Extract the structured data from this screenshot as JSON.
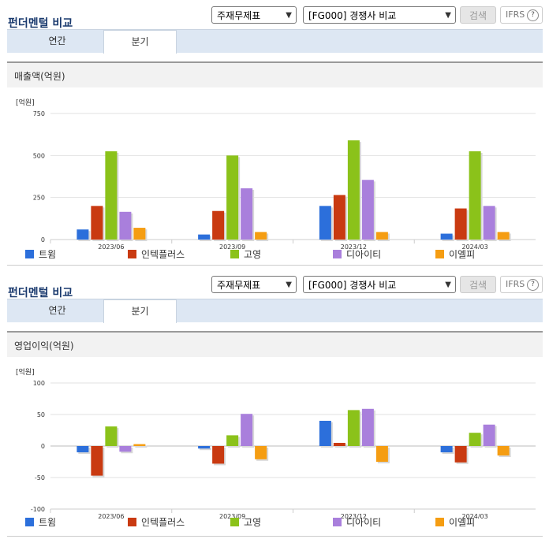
{
  "panels": [
    {
      "title": "펀더멘털 비교",
      "select1": "주재무제표",
      "select2": "[FG000] 경쟁사 비교",
      "search_label": "검색",
      "ifrs_label": "IFRS",
      "help_label": "?",
      "tabs": [
        "연간",
        "분기"
      ],
      "section_label": "매출액(억원)"
    },
    {
      "title": "펀더멘털 비교",
      "select1": "주재무제표",
      "select2": "[FG000] 경쟁사 비교",
      "search_label": "검색",
      "ifrs_label": "IFRS",
      "help_label": "?",
      "tabs": [
        "연간",
        "분기"
      ],
      "section_label": "영업이익(억원)"
    }
  ],
  "legend": [
    "트윔",
    "인텍플러스",
    "고영",
    "디아이티",
    "이엘피"
  ],
  "colors": [
    "#2c6fdb",
    "#c93a11",
    "#8bc21a",
    "#a97fdc",
    "#f59d12"
  ],
  "chart_data": [
    {
      "type": "bar",
      "unit_label": "[억원]",
      "categories": [
        "2023/06",
        "2023/09",
        "2023/12",
        "2024/03"
      ],
      "ylim": [
        0,
        750
      ],
      "yticks": [
        "750",
        "500",
        "250",
        "0"
      ],
      "series": [
        {
          "name": "트윔",
          "values": [
            60,
            30,
            200,
            35
          ]
        },
        {
          "name": "인텍플러스",
          "values": [
            200,
            170,
            265,
            185
          ]
        },
        {
          "name": "고영",
          "values": [
            525,
            500,
            590,
            525
          ]
        },
        {
          "name": "디아이티",
          "values": [
            165,
            305,
            355,
            200
          ]
        },
        {
          "name": "이엘피",
          "values": [
            70,
            45,
            45,
            45
          ]
        }
      ]
    },
    {
      "type": "bar",
      "unit_label": "[억원]",
      "categories": [
        "2023/06",
        "2023/09",
        "2023/12",
        "2024/03"
      ],
      "ylim": [
        -100,
        100
      ],
      "yticks": [
        "100",
        "50",
        "0",
        "-50",
        "-100"
      ],
      "series": [
        {
          "name": "트윔",
          "values": [
            -10,
            -4,
            40,
            -10
          ]
        },
        {
          "name": "인텍플러스",
          "values": [
            -47,
            -28,
            5,
            -26
          ]
        },
        {
          "name": "고영",
          "values": [
            31,
            17,
            57,
            21
          ]
        },
        {
          "name": "디아이티",
          "values": [
            -9,
            51,
            59,
            34
          ]
        },
        {
          "name": "이엘피",
          "values": [
            3,
            -21,
            -25,
            -15
          ]
        }
      ]
    }
  ]
}
